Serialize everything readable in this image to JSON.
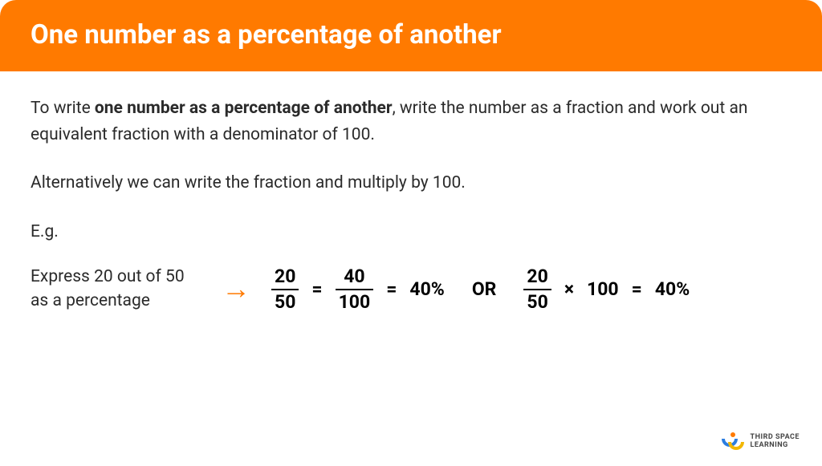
{
  "header": {
    "title": "One number as a percentage of another",
    "bg_color": "#ff7a00",
    "text_color": "#ffffff"
  },
  "body": {
    "para1_before": "To write ",
    "para1_bold": "one number as a percentage of another",
    "para1_after": ", write the number as a fraction and work out an equivalent fraction with a denominator of 100.",
    "para2": "Alternatively we can write the fraction and multiply by 100.",
    "eg_label": "E.g.",
    "express_line1": "Express 20 out of 50",
    "express_line2": "as a percentage"
  },
  "math": {
    "frac1_num": "20",
    "frac1_den": "50",
    "eq1": "=",
    "frac2_num": "40",
    "frac2_den": "100",
    "eq2": "=",
    "result1": "40%",
    "or": "OR",
    "frac3_num": "20",
    "frac3_den": "50",
    "times": "×",
    "hundred": "100",
    "eq3": "=",
    "result2": "40%",
    "arrow_color": "#ff7a00"
  },
  "logo": {
    "line1": "THIRD SPACE",
    "line2": "LEARNING",
    "dot_color": "#ff7a00",
    "swoosh1_color": "#2b7de0",
    "swoosh2_color": "#f2b705"
  }
}
